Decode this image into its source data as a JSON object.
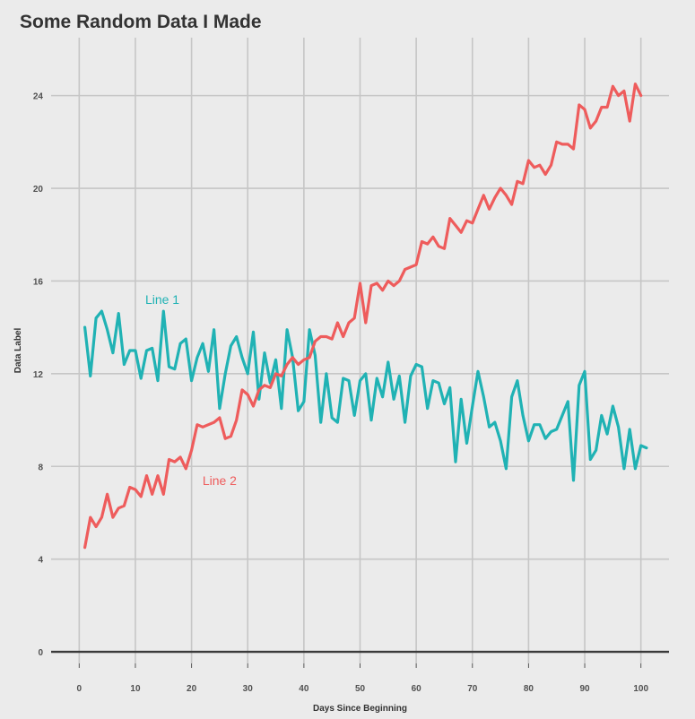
{
  "chart_data": {
    "type": "line",
    "title": "Some Random Data I Made",
    "xlabel": "Days Since Beginning",
    "ylabel": "Data Label",
    "xlim": [
      -5,
      105
    ],
    "ylim": [
      -0.5,
      26.5
    ],
    "xticks": [
      0,
      10,
      20,
      30,
      40,
      50,
      60,
      70,
      80,
      90,
      100
    ],
    "yticks": [
      0,
      4,
      8,
      12,
      16,
      20,
      24
    ],
    "grid": true,
    "baseline": 0,
    "x_start": 1,
    "series": [
      {
        "name": "Line 1",
        "color": "#20b2b4",
        "label_at": [
          14.8,
          15.2
        ],
        "values": [
          14.0,
          11.9,
          14.4,
          14.7,
          13.9,
          12.9,
          14.6,
          12.4,
          13.0,
          13.0,
          11.8,
          13.0,
          13.1,
          11.7,
          14.7,
          12.3,
          12.2,
          13.3,
          13.5,
          11.7,
          12.7,
          13.3,
          12.1,
          13.9,
          10.5,
          12.0,
          13.2,
          13.6,
          12.7,
          12.0,
          13.8,
          10.9,
          12.9,
          11.6,
          12.6,
          10.5,
          13.9,
          12.7,
          10.4,
          10.8,
          13.9,
          12.8,
          9.9,
          12.0,
          10.1,
          9.9,
          11.8,
          11.7,
          10.2,
          11.7,
          12.0,
          10.0,
          11.8,
          11.0,
          12.5,
          10.9,
          11.9,
          9.9,
          11.9,
          12.4,
          12.3,
          10.5,
          11.7,
          11.6,
          10.7,
          11.4,
          8.2,
          10.9,
          9.0,
          10.6,
          12.1,
          11.0,
          9.7,
          9.9,
          9.1,
          7.9,
          11.0,
          11.7,
          10.2,
          9.1,
          9.8,
          9.8,
          9.2,
          9.5,
          9.6,
          10.2,
          10.8,
          7.4,
          11.5,
          12.1,
          8.3,
          8.7,
          10.2,
          9.4,
          10.6,
          9.7,
          7.9,
          9.6,
          7.9,
          8.9,
          8.8
        ]
      },
      {
        "name": "Line 2",
        "color": "#ee5c5c",
        "label_at": [
          25.0,
          7.4
        ],
        "values": [
          4.5,
          5.8,
          5.4,
          5.8,
          6.8,
          5.8,
          6.2,
          6.3,
          7.1,
          7.0,
          6.7,
          7.6,
          6.8,
          7.6,
          6.8,
          8.3,
          8.2,
          8.4,
          7.9,
          8.7,
          9.8,
          9.7,
          9.8,
          9.9,
          10.1,
          9.2,
          9.3,
          10.0,
          11.3,
          11.1,
          10.6,
          11.3,
          11.5,
          11.4,
          12.0,
          11.9,
          12.4,
          12.7,
          12.4,
          12.6,
          12.7,
          13.4,
          13.6,
          13.6,
          13.5,
          14.2,
          13.6,
          14.2,
          14.4,
          15.9,
          14.2,
          15.8,
          15.9,
          15.6,
          16.0,
          15.8,
          16.0,
          16.5,
          16.6,
          16.7,
          17.7,
          17.6,
          17.9,
          17.5,
          17.4,
          18.7,
          18.4,
          18.1,
          18.6,
          18.5,
          19.1,
          19.7,
          19.1,
          19.6,
          20.0,
          19.7,
          19.3,
          20.3,
          20.2,
          21.2,
          20.9,
          21.0,
          20.6,
          21.0,
          22.0,
          21.9,
          21.9,
          21.7,
          23.6,
          23.4,
          22.6,
          22.9,
          23.5,
          23.5,
          24.4,
          24.0,
          24.2,
          22.9,
          24.5,
          24.0
        ]
      }
    ]
  }
}
